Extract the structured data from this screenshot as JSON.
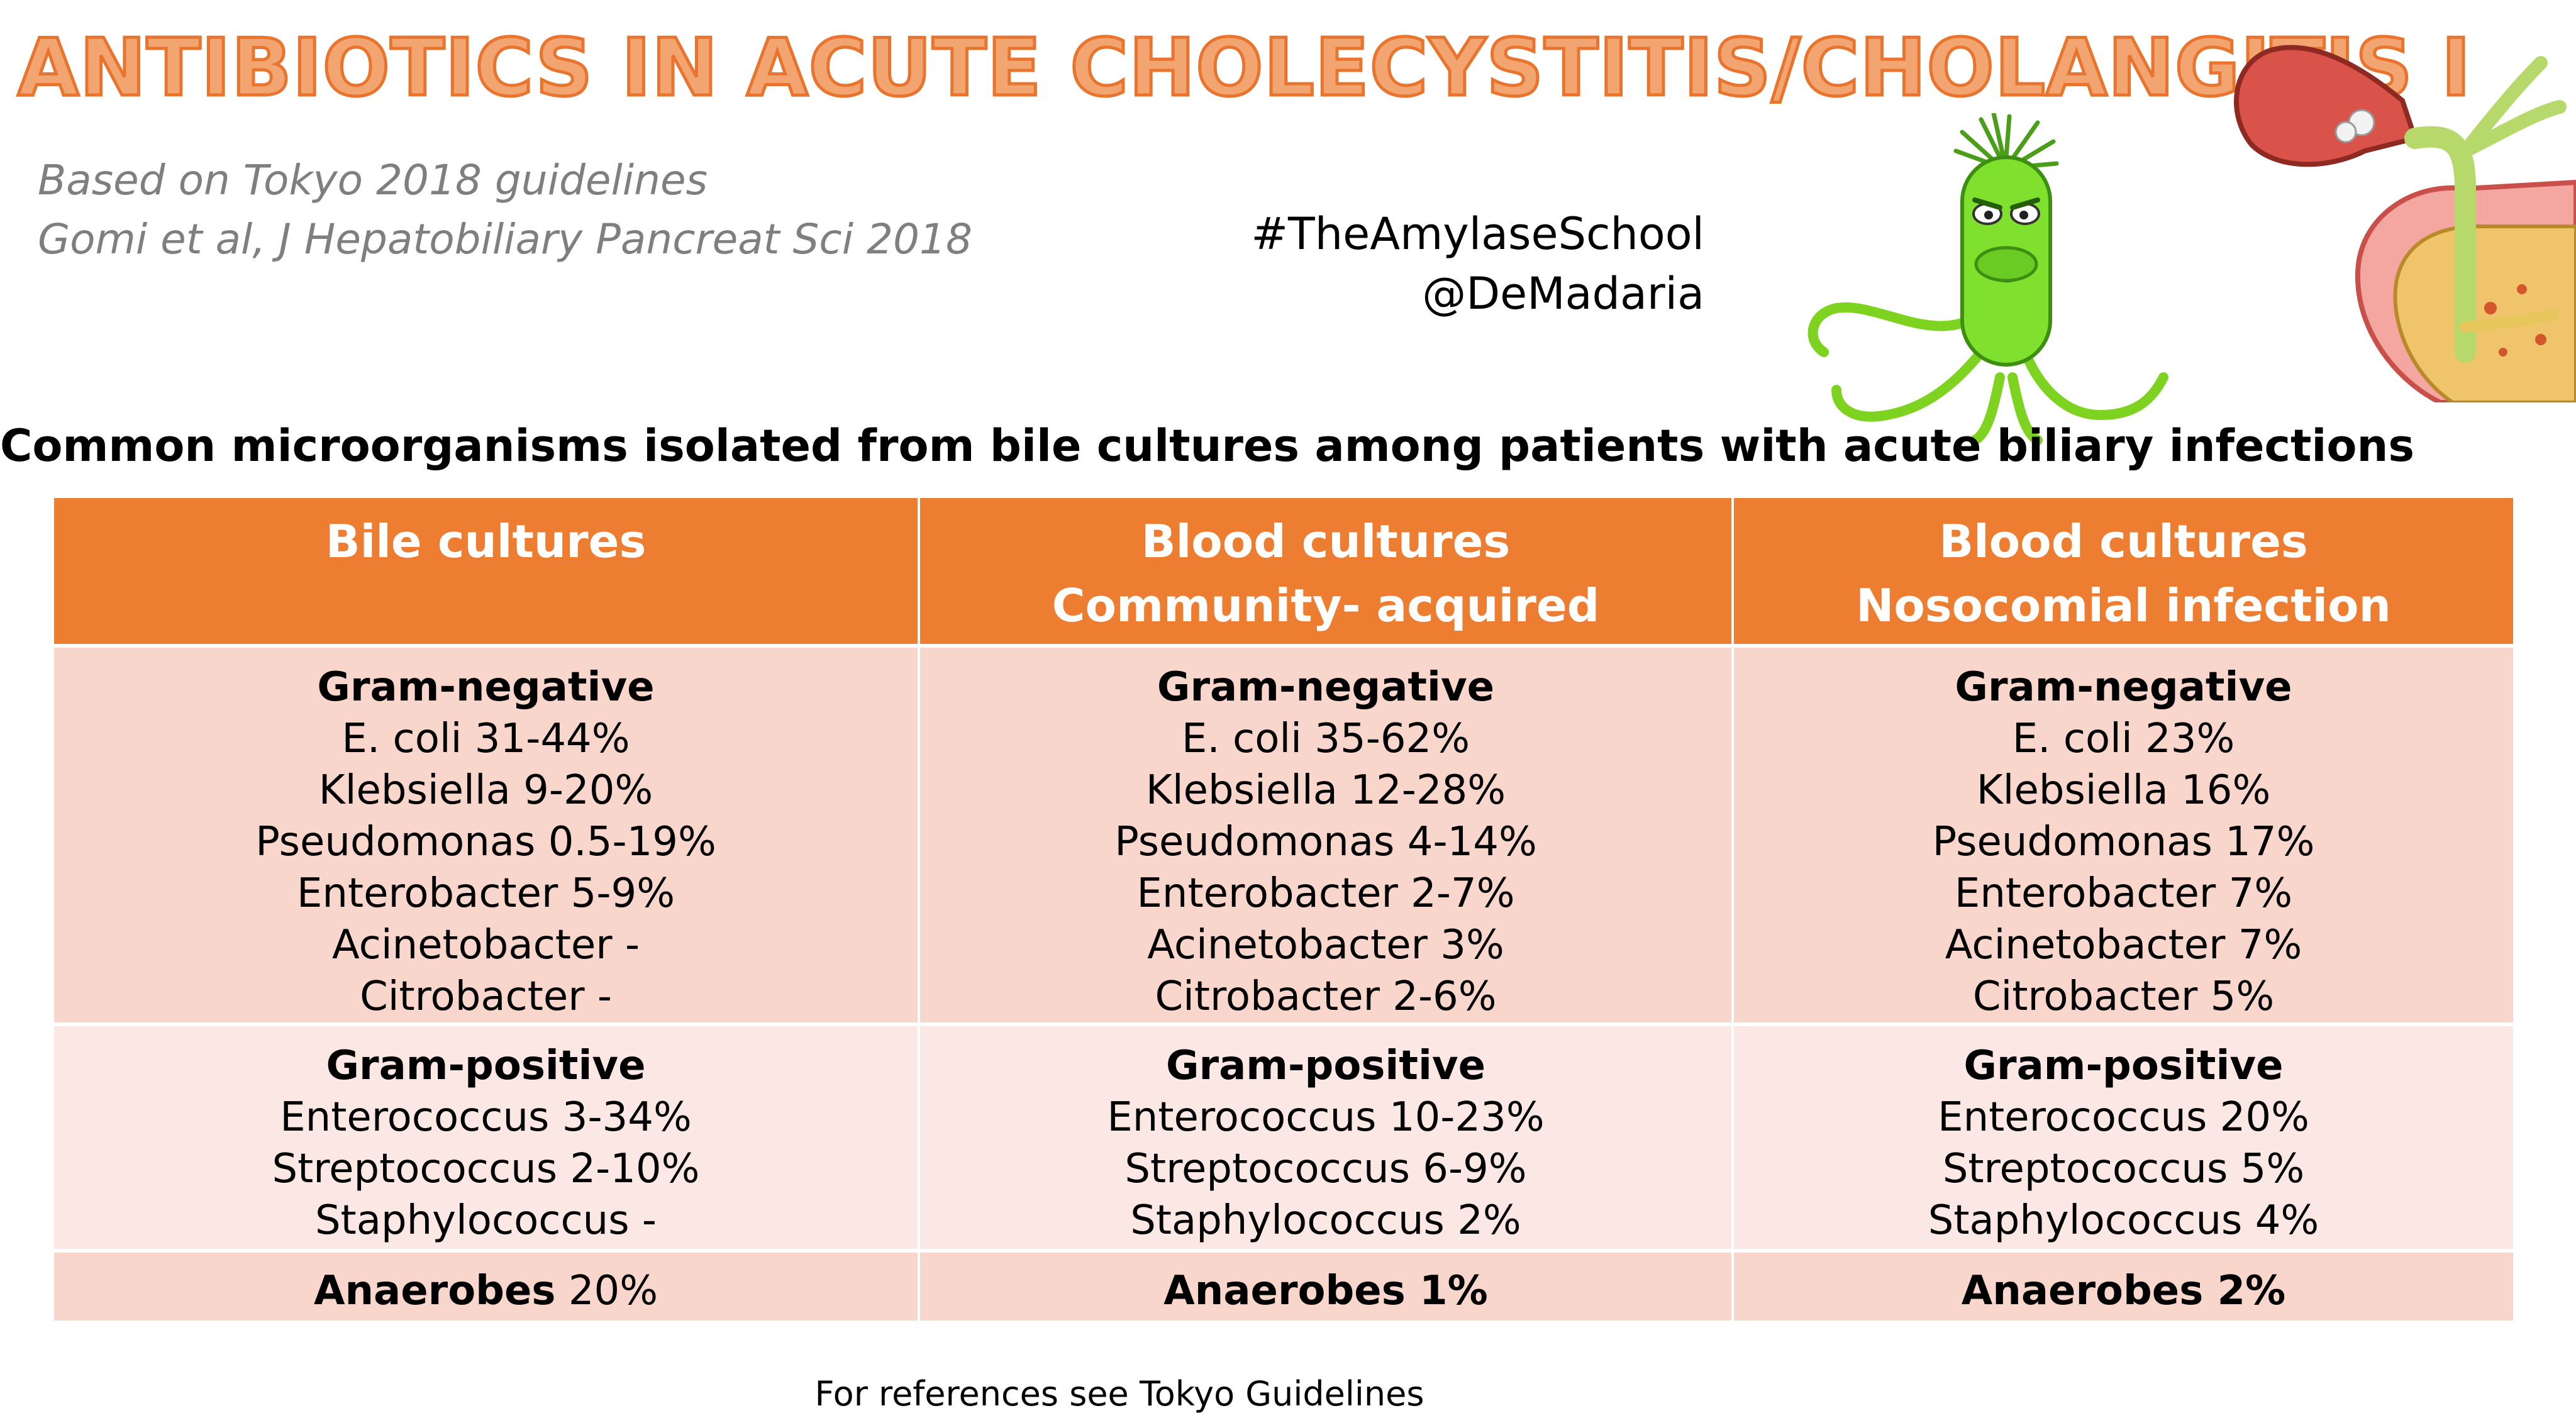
{
  "title": "ANTIBIOTICS IN ACUTE CHOLECYSTITIS/CHOLANGITIS I",
  "source": [
    "Based on Tokyo 2018 guidelines",
    "Gomi et al, J Hepatobiliary Pancreat Sci 2018"
  ],
  "handles": [
    "#TheAmylaseSchool",
    "@DeMadaria"
  ],
  "subtitle": "Common microorganisms isolated from bile cultures among patients with acute biliary infections",
  "table": {
    "columns": [
      {
        "header": [
          "Bile cultures"
        ],
        "gram_negative": {
          "heading": "Gram-negative",
          "items": [
            "E. coli 31-44%",
            "Klebsiella 9-20%",
            "Pseudomonas 0.5-19%",
            "Enterobacter 5-9%",
            "Acinetobacter -",
            "Citrobacter -"
          ]
        },
        "gram_positive": {
          "heading": "Gram-positive",
          "items": [
            "Enterococcus 3-34%",
            "Streptococcus 2-10%",
            "Staphylococcus -"
          ]
        },
        "anaerobes": {
          "label": "Anaerobes",
          "value": " 20%"
        }
      },
      {
        "header": [
          "Blood cultures",
          "Community- acquired"
        ],
        "gram_negative": {
          "heading": "Gram-negative",
          "items": [
            "E. coli 35-62%",
            "Klebsiella 12-28%",
            "Pseudomonas 4-14%",
            "Enterobacter 2-7%",
            "Acinetobacter 3%",
            "Citrobacter 2-6%"
          ]
        },
        "gram_positive": {
          "heading": "Gram-positive",
          "items": [
            "Enterococcus 10-23%",
            "Streptococcus 6-9%",
            "Staphylococcus 2%"
          ]
        },
        "anaerobes": {
          "label": "Anaerobes 1%",
          "value": ""
        }
      },
      {
        "header": [
          "Blood cultures",
          "Nosocomial infection"
        ],
        "gram_negative": {
          "heading": "Gram-negative",
          "items": [
            "E. coli 23%",
            "Klebsiella 16%",
            "Pseudomonas 17%",
            "Enterobacter 7%",
            "Acinetobacter 7%",
            "Citrobacter 5%"
          ]
        },
        "gram_positive": {
          "heading": "Gram-positive",
          "items": [
            "Enterococcus 20%",
            "Streptococcus 5%",
            "Staphylococcus 4%"
          ]
        },
        "anaerobes": {
          "label": "Anaerobes 2%",
          "value": ""
        }
      }
    ]
  },
  "footer": "For references see Tokyo Guidelines",
  "colors": {
    "accent": "#ED7D31",
    "title_fill": "#F2A570",
    "row_dark": "#F8D6CB",
    "row_light": "#FBE8E5"
  },
  "illustrations": [
    "bacterium-cartoon",
    "gallbladder-illustration"
  ]
}
